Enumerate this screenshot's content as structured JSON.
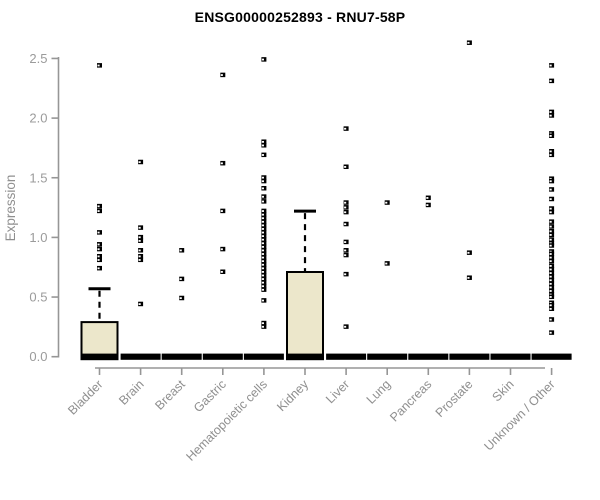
{
  "chart_data": {
    "type": "box",
    "title": "ENSG00000252893 - RNU7-58P",
    "ylabel": "Expression",
    "yticks": [
      0.0,
      0.5,
      1.0,
      1.5,
      2.0,
      2.5
    ],
    "ylim": [
      0,
      2.72
    ],
    "grid": false,
    "legend": "none",
    "colors": {
      "box_fill": "#ECE7CB",
      "box_border": "#000000",
      "axis": "#969696",
      "tick_label": "#9b9b9b",
      "category_label": "#8f8f8f",
      "outlier": "#000000",
      "title": "#000000"
    },
    "categories": [
      "Bladder",
      "Brain",
      "Breast",
      "Gastric",
      "Hematopoietic cells",
      "Kidney",
      "Liver",
      "Lung",
      "Pancreas",
      "Prostate",
      "Skin",
      "Unknown / Other"
    ],
    "series": [
      {
        "name": "Bladder",
        "box": {
          "whisker_low": 0,
          "q1": 0,
          "median": 0.02,
          "q3": 0.29,
          "whisker_high": 0.57
        },
        "outliers": [
          2.44,
          1.26,
          1.22,
          1.04,
          0.94,
          0.9,
          0.84,
          0.81,
          0.74
        ]
      },
      {
        "name": "Brain",
        "box": {
          "whisker_low": 0,
          "q1": 0,
          "median": 0,
          "q3": 0,
          "whisker_high": 0
        },
        "outliers": [
          1.63,
          1.08,
          1.0,
          0.97,
          0.89,
          0.84,
          0.81,
          0.44
        ]
      },
      {
        "name": "Breast",
        "box": {
          "whisker_low": 0,
          "q1": 0,
          "median": 0,
          "q3": 0,
          "whisker_high": 0
        },
        "outliers": [
          0.89,
          0.65,
          0.49
        ]
      },
      {
        "name": "Gastric",
        "box": {
          "whisker_low": 0,
          "q1": 0,
          "median": 0,
          "q3": 0,
          "whisker_high": 0
        },
        "outliers": [
          2.36,
          1.62,
          1.22,
          0.9,
          0.71
        ]
      },
      {
        "name": "Hematopoietic cells",
        "box": {
          "whisker_low": 0,
          "q1": 0,
          "median": 0,
          "q3": 0,
          "whisker_high": 0
        },
        "outliers": [
          2.49,
          1.8,
          1.77,
          1.69,
          1.5,
          1.47,
          1.41,
          1.34,
          1.3,
          1.22,
          1.19,
          1.16,
          1.13,
          1.1,
          1.07,
          1.04,
          1.01,
          0.98,
          0.95,
          0.92,
          0.89,
          0.86,
          0.83,
          0.8,
          0.77,
          0.74,
          0.71,
          0.68,
          0.65,
          0.62,
          0.59,
          0.56,
          0.47,
          0.28,
          0.25
        ]
      },
      {
        "name": "Kidney",
        "box": {
          "whisker_low": 0,
          "q1": 0,
          "median": 0.02,
          "q3": 0.71,
          "whisker_high": 1.22
        },
        "outliers": []
      },
      {
        "name": "Liver",
        "box": {
          "whisker_low": 0,
          "q1": 0,
          "median": 0,
          "q3": 0,
          "whisker_high": 0
        },
        "outliers": [
          1.91,
          1.59,
          1.29,
          1.25,
          1.21,
          1.11,
          0.96,
          0.89,
          0.85,
          0.69,
          0.25
        ]
      },
      {
        "name": "Lung",
        "box": {
          "whisker_low": 0,
          "q1": 0,
          "median": 0,
          "q3": 0,
          "whisker_high": 0
        },
        "outliers": [
          1.29,
          0.78
        ]
      },
      {
        "name": "Pancreas",
        "box": {
          "whisker_low": 0,
          "q1": 0,
          "median": 0,
          "q3": 0,
          "whisker_high": 0
        },
        "outliers": [
          1.33,
          1.27
        ]
      },
      {
        "name": "Prostate",
        "box": {
          "whisker_low": 0,
          "q1": 0,
          "median": 0,
          "q3": 0,
          "whisker_high": 0
        },
        "outliers": [
          2.63,
          0.87,
          0.66
        ]
      },
      {
        "name": "Skin",
        "box": {
          "whisker_low": 0,
          "q1": 0,
          "median": 0,
          "q3": 0,
          "whisker_high": 0
        },
        "outliers": []
      },
      {
        "name": "Unknown / Other",
        "box": {
          "whisker_low": 0,
          "q1": 0,
          "median": 0,
          "q3": 0,
          "whisker_high": 0
        },
        "outliers": [
          2.44,
          2.31,
          2.05,
          2.02,
          1.87,
          1.85,
          1.72,
          1.69,
          1.49,
          1.47,
          1.4,
          1.32,
          1.24,
          1.21,
          1.13,
          1.09,
          1.05,
          1.02,
          0.98,
          0.95,
          0.93,
          0.88,
          0.86,
          0.83,
          0.8,
          0.76,
          0.73,
          0.7,
          0.67,
          0.64,
          0.61,
          0.58,
          0.55,
          0.52,
          0.5,
          0.45,
          0.43,
          0.4,
          0.31,
          0.2
        ]
      }
    ]
  }
}
